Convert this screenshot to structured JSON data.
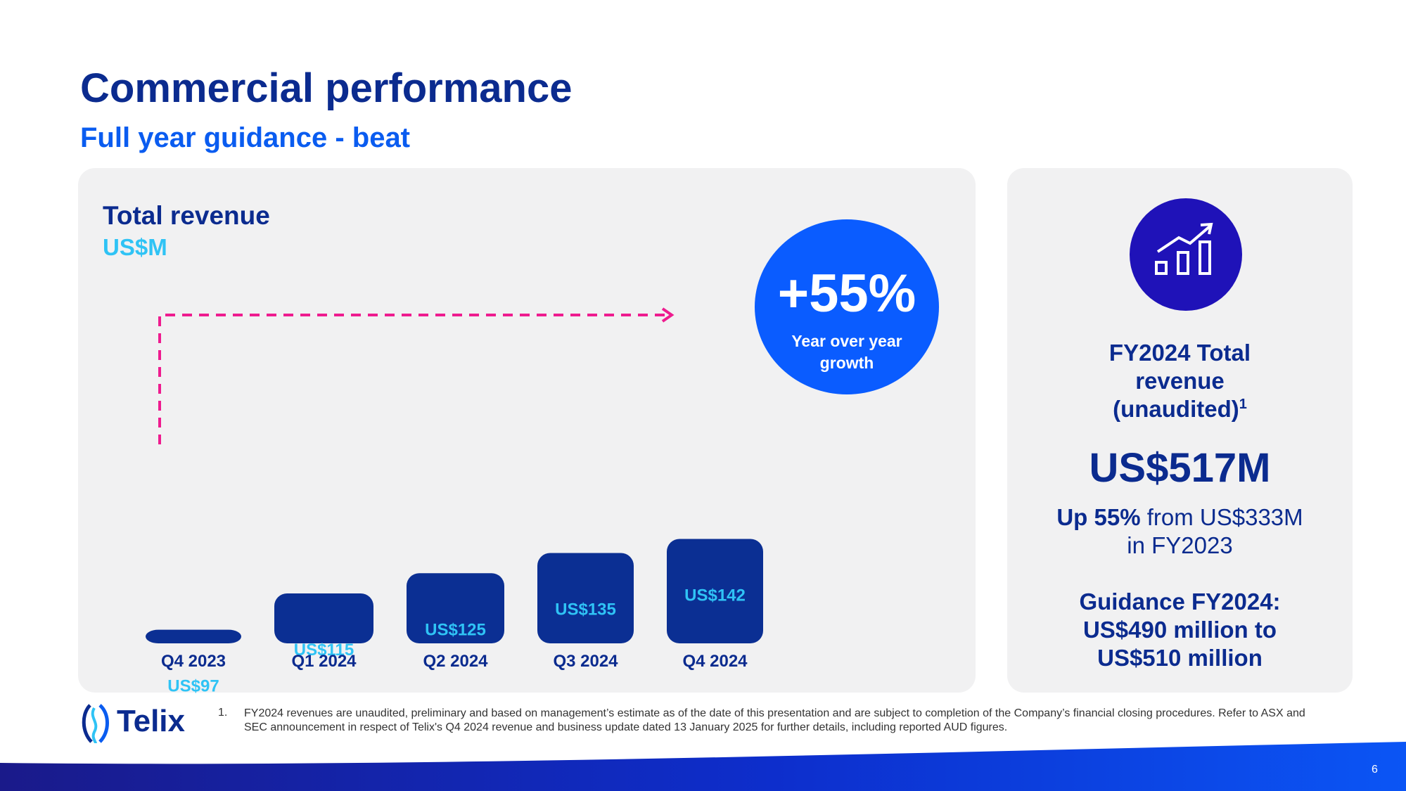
{
  "slide": {
    "title": "Commercial performance",
    "subtitle": "Full year guidance - beat",
    "page_number": "6"
  },
  "chart_panel": {
    "title": "Total revenue",
    "unit": "US$M",
    "growth_value": "+55%",
    "growth_label_line1": "Year over year",
    "growth_label_line2": "growth"
  },
  "chart_data": {
    "type": "bar",
    "title": "Total revenue",
    "ylabel": "US$M",
    "categories": [
      "Q4 2023",
      "Q1 2024",
      "Q2 2024",
      "Q3 2024",
      "Q4 2024"
    ],
    "values": [
      97,
      115,
      125,
      135,
      142
    ],
    "data_labels": [
      "US$97",
      "US$115",
      "US$125",
      "US$135",
      "US$142"
    ],
    "annotation": "+55%",
    "bar_color": "#0b2f93",
    "label_color": "#2fc3f5",
    "arrow_color": "#ee1c8f"
  },
  "summary_panel": {
    "icon": "growth-chart-icon",
    "heading_line1": "FY2024 Total",
    "heading_line2": "revenue",
    "heading_line3": "(unaudited)",
    "heading_footnote": "1",
    "total": "US$517M",
    "growth_bold": "Up 55%",
    "growth_rest": " from US$333M",
    "growth_line2": "in FY2023",
    "guidance_line1": "Guidance FY2024:",
    "guidance_line2": "US$490 million to",
    "guidance_line3": "US$510 million"
  },
  "footer": {
    "logo_text": "Telix",
    "footnote_number": "1.",
    "footnote_text": "FY2024 revenues are unaudited, preliminary and based on management’s estimate as of the date of this presentation and are subject to completion of the Company’s financial closing procedures. Refer to ASX and SEC announcement in respect of Telix's Q4 2024 revenue and business update dated 13 January 2025 for further details, including reported AUD figures."
  },
  "colors": {
    "navy": "#0b2b8f",
    "blue": "#0a5cf0",
    "cyan": "#2fc3f5",
    "panel": "#f1f1f2"
  }
}
